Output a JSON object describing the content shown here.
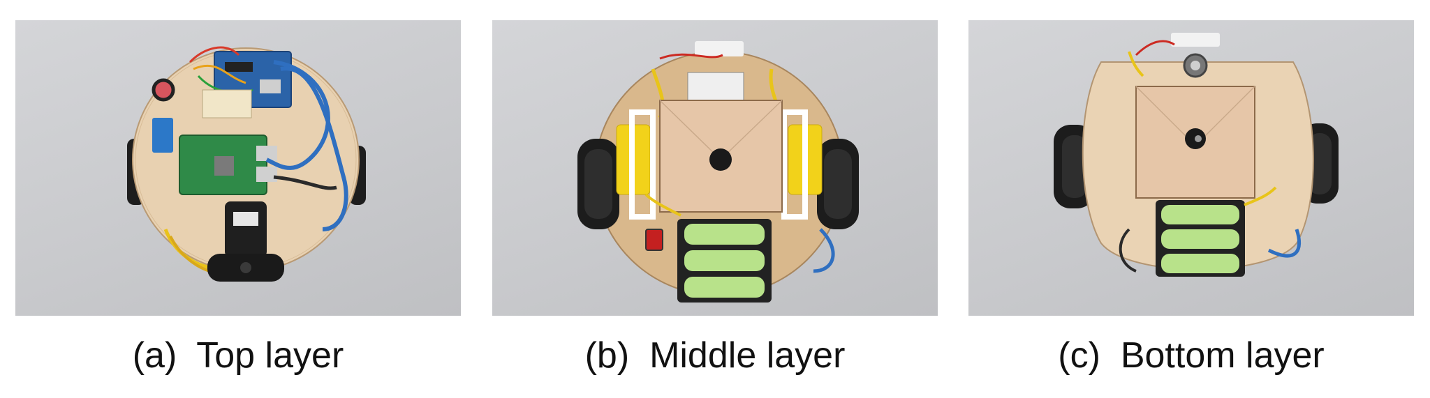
{
  "panels": [
    {
      "id": "a",
      "label": "(a)",
      "title": "Top layer"
    },
    {
      "id": "b",
      "label": "(b)",
      "title": "Middle layer"
    },
    {
      "id": "c",
      "label": "(c)",
      "title": "Bottom layer"
    }
  ],
  "colors": {
    "background": "#c9cacd",
    "wood": "#e9d2b4",
    "wheel": "#1c1c1c",
    "motor": "#f2d21a",
    "battery": "#b8e28a",
    "cable": "#2f6fc0"
  }
}
